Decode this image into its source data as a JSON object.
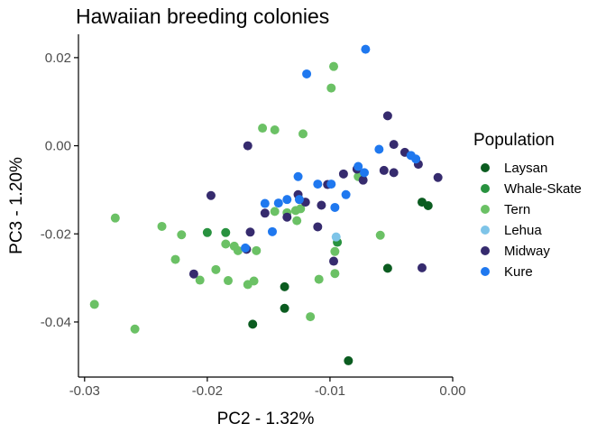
{
  "chart_data": {
    "type": "scatter",
    "title": "Hawaiian breeding colonies",
    "xlabel": "PC2 - 1.32%",
    "ylabel": "PC3 - 1.20%",
    "xlim": [
      -0.0305,
      0.0
    ],
    "ylim": [
      -0.0525,
      0.0253
    ],
    "xticks": [
      -0.03,
      -0.02,
      -0.01,
      0.0
    ],
    "xtick_labels": [
      "-0.03",
      "-0.02",
      "-0.01",
      "0.00"
    ],
    "yticks": [
      -0.04,
      -0.02,
      0.0,
      0.02
    ],
    "ytick_labels": [
      "-0.04",
      "-0.02",
      "0.00",
      "0.02"
    ],
    "grid": false,
    "legend": {
      "title": "Population",
      "position": "right"
    },
    "series": [
      {
        "name": "Laysan",
        "color": "#0b5c20",
        "points": [
          [
            -0.0163,
            -0.0405
          ],
          [
            -0.0137,
            -0.032
          ],
          [
            -0.0137,
            -0.0369
          ],
          [
            -0.0085,
            -0.0488
          ],
          [
            -0.0053,
            -0.0278
          ],
          [
            -0.0025,
            -0.0128
          ],
          [
            -0.002,
            -0.0136
          ]
        ]
      },
      {
        "name": "Whale-Skate",
        "color": "#28923f",
        "points": [
          [
            -0.02,
            -0.0197
          ],
          [
            -0.0185,
            -0.0197
          ],
          [
            -0.0094,
            -0.0219
          ]
        ]
      },
      {
        "name": "Tern",
        "color": "#6bc165",
        "points": [
          [
            -0.0292,
            -0.036
          ],
          [
            -0.0275,
            -0.0164
          ],
          [
            -0.0259,
            -0.0416
          ],
          [
            -0.0237,
            -0.0183
          ],
          [
            -0.0226,
            -0.0258
          ],
          [
            -0.0221,
            -0.0202
          ],
          [
            -0.0206,
            -0.0305
          ],
          [
            -0.0193,
            -0.0281
          ],
          [
            -0.0185,
            -0.0223
          ],
          [
            -0.0183,
            -0.0306
          ],
          [
            -0.0178,
            -0.0228
          ],
          [
            -0.0175,
            -0.0238
          ],
          [
            -0.0167,
            -0.0315
          ],
          [
            -0.0162,
            -0.0307
          ],
          [
            -0.016,
            -0.0238
          ],
          [
            -0.0155,
            0.004
          ],
          [
            -0.0145,
            0.0036
          ],
          [
            -0.0145,
            -0.0149
          ],
          [
            -0.0135,
            -0.0152
          ],
          [
            -0.0128,
            -0.0147
          ],
          [
            -0.0127,
            -0.017
          ],
          [
            -0.0124,
            -0.0143
          ],
          [
            -0.0122,
            0.0027
          ],
          [
            -0.0116,
            -0.0388
          ],
          [
            -0.0109,
            -0.0303
          ],
          [
            -0.0099,
            0.0131
          ],
          [
            -0.0097,
            0.018
          ],
          [
            -0.0096,
            -0.024
          ],
          [
            -0.0096,
            -0.029
          ],
          [
            -0.0077,
            -0.007
          ],
          [
            -0.0059,
            -0.0203
          ]
        ]
      },
      {
        "name": "Lehua",
        "color": "#7ec4e8",
        "points": [
          [
            -0.0095,
            -0.0207
          ]
        ]
      },
      {
        "name": "Midway",
        "color": "#362b6e",
        "points": [
          [
            -0.0211,
            -0.0291
          ],
          [
            -0.0197,
            -0.0113
          ],
          [
            -0.0168,
            -0.0235
          ],
          [
            -0.0167,
            0.0
          ],
          [
            -0.0165,
            -0.0196
          ],
          [
            -0.0153,
            -0.0153
          ],
          [
            -0.0135,
            -0.0162
          ],
          [
            -0.0126,
            -0.0111
          ],
          [
            -0.012,
            -0.0128
          ],
          [
            -0.011,
            -0.0184
          ],
          [
            -0.0107,
            -0.0135
          ],
          [
            -0.0102,
            -0.0088
          ],
          [
            -0.0097,
            -0.0262
          ],
          [
            -0.0089,
            -0.0064
          ],
          [
            -0.0078,
            -0.0053
          ],
          [
            -0.0073,
            -0.0078
          ],
          [
            -0.0056,
            -0.0056
          ],
          [
            -0.0053,
            0.0068
          ],
          [
            -0.0048,
            0.0003
          ],
          [
            -0.0048,
            -0.0061
          ],
          [
            -0.0039,
            -0.0015
          ],
          [
            -0.0028,
            -0.0042
          ],
          [
            -0.0025,
            -0.0277
          ],
          [
            -0.0012,
            -0.0072
          ]
        ]
      },
      {
        "name": "Kure",
        "color": "#1f78ef",
        "points": [
          [
            -0.0169,
            -0.0232
          ],
          [
            -0.0153,
            -0.0131
          ],
          [
            -0.0147,
            -0.0195
          ],
          [
            -0.0142,
            -0.013
          ],
          [
            -0.0135,
            -0.0122
          ],
          [
            -0.0126,
            -0.007
          ],
          [
            -0.0125,
            -0.0122
          ],
          [
            -0.0119,
            0.0163
          ],
          [
            -0.011,
            -0.0087
          ],
          [
            -0.0099,
            -0.0087
          ],
          [
            -0.0096,
            -0.014
          ],
          [
            -0.0087,
            -0.0111
          ],
          [
            -0.0071,
            0.0219
          ],
          [
            -0.0077,
            -0.0047
          ],
          [
            -0.0072,
            -0.0061
          ],
          [
            -0.006,
            -0.0008
          ],
          [
            -0.0034,
            -0.0022
          ],
          [
            -0.003,
            -0.003
          ]
        ]
      }
    ]
  }
}
